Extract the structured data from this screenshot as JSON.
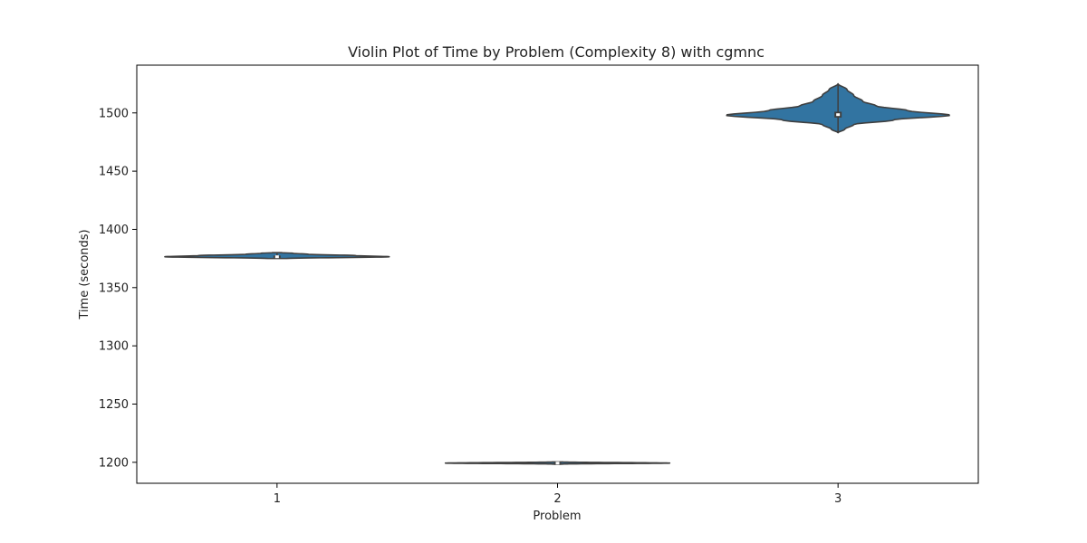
{
  "chart_data": {
    "type": "violin",
    "title": "Violin Plot of Time by Problem (Complexity 8) with cgmnc",
    "xlabel": "Problem",
    "ylabel": "Time (seconds)",
    "categories": [
      "1",
      "2",
      "3"
    ],
    "ylim": [
      1182,
      1541
    ],
    "yticks": [
      1200,
      1250,
      1300,
      1350,
      1400,
      1450,
      1500
    ],
    "grid": false,
    "series": [
      {
        "category": "1",
        "min": 1375,
        "q1": 1375.8,
        "median": 1376.5,
        "q3": 1377.5,
        "max": 1380,
        "profile": [
          [
            1375,
            0.08
          ],
          [
            1376.5,
            1.0
          ],
          [
            1377.5,
            0.7
          ],
          [
            1378.6,
            0.28
          ],
          [
            1379.5,
            0.14
          ],
          [
            1380,
            0.04
          ]
        ]
      },
      {
        "category": "2",
        "min": 1198.5,
        "q1": 1198.9,
        "median": 1199.3,
        "q3": 1199.7,
        "max": 1200.3,
        "profile": [
          [
            1198.5,
            0.05
          ],
          [
            1199.3,
            1.0
          ],
          [
            1200.3,
            0.05
          ]
        ]
      },
      {
        "category": "3",
        "min": 1483,
        "q1": 1496,
        "median": 1498.5,
        "q3": 1501,
        "max": 1525,
        "profile": [
          [
            1483,
            0.0
          ],
          [
            1486,
            0.06
          ],
          [
            1490,
            0.14
          ],
          [
            1494,
            0.5
          ],
          [
            1498,
            1.0
          ],
          [
            1502,
            0.62
          ],
          [
            1506,
            0.34
          ],
          [
            1510,
            0.22
          ],
          [
            1515,
            0.14
          ],
          [
            1520,
            0.08
          ],
          [
            1525,
            0.0
          ]
        ]
      }
    ],
    "colors": {
      "violin_fill": "#3274a1",
      "violin_edge": "#3f3f3f",
      "box": "#3f3f3f",
      "median": "#ffffff",
      "axis": "#000000",
      "text": "#222222"
    }
  }
}
